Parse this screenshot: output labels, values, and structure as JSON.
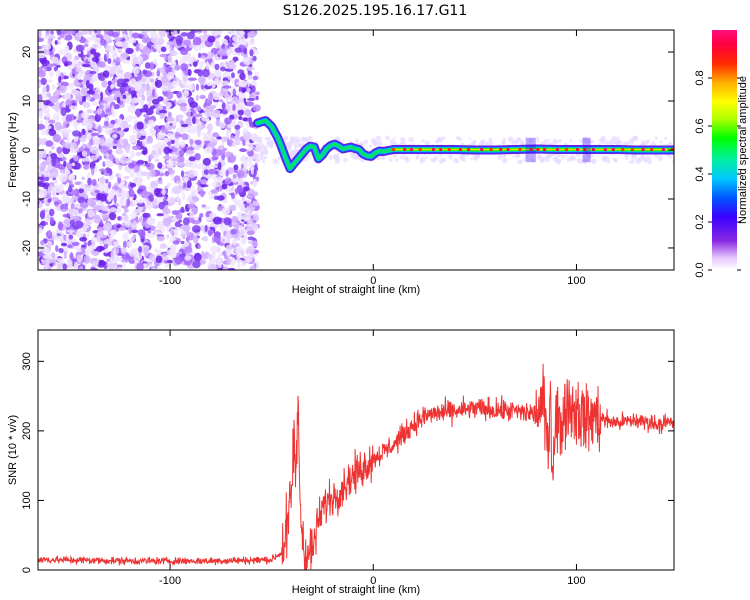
{
  "title": "S126.2025.195.16.17.G11",
  "chart_data": [
    {
      "type": "heatmap",
      "xlabel": "Height of straight line (km)",
      "ylabel": "Frequency (Hz)",
      "xlim": [
        -165,
        148
      ],
      "ylim": [
        -24.5,
        24.5
      ],
      "xticks": [
        -100,
        0,
        100
      ],
      "yticks": [
        -20,
        -10,
        0,
        10,
        20
      ],
      "colorbar": {
        "label": "Normalized spectral amplitude",
        "ticks": [
          0.0,
          0.2,
          0.4,
          0.6,
          0.8
        ],
        "range": [
          0,
          1
        ]
      },
      "noise_region_x": [
        -165,
        -60
      ],
      "ridge": {
        "x": [
          -57,
          -53,
          -50,
          -47,
          -45,
          -43,
          -41,
          -39,
          -37,
          -35,
          -33,
          -31,
          -29,
          -27,
          -25,
          -23,
          -21,
          -19,
          -17,
          -15,
          -13,
          -11,
          -9,
          -7,
          -5,
          -3,
          -1,
          1,
          3,
          5,
          10,
          20,
          30,
          40,
          50,
          60,
          70,
          80,
          90,
          100,
          110,
          120,
          130,
          140,
          148
        ],
        "y": [
          5.5,
          6.0,
          4.8,
          2.5,
          0.5,
          -1.8,
          -3.8,
          -2.8,
          -1.8,
          -0.8,
          0.2,
          0.8,
          0.6,
          -1.8,
          -1.0,
          0.2,
          0.9,
          1.2,
          0.8,
          0.2,
          0.4,
          0.6,
          0.3,
          0.1,
          -0.8,
          -1.2,
          -1.3,
          -0.6,
          -0.2,
          -0.3,
          0.1,
          0.1,
          0.1,
          0.1,
          0.0,
          0.0,
          0.1,
          0.2,
          0.1,
          0.1,
          0.1,
          0.1,
          0.0,
          0.0,
          0.0
        ]
      }
    },
    {
      "type": "line",
      "xlabel": "Height of straight line (km)",
      "ylabel": "SNR (10 * v/v)",
      "xlim": [
        -165,
        148
      ],
      "ylim": [
        0,
        345
      ],
      "xticks": [
        -100,
        0,
        100
      ],
      "yticks": [
        0,
        100,
        200,
        300
      ],
      "color": "#ee3333",
      "series": [
        {
          "x": [
            -165,
            -140,
            -120,
            -100,
            -80,
            -60,
            -50,
            -45,
            -42,
            -40,
            -39,
            -38,
            -37,
            -36,
            -35,
            -34,
            -33,
            -32,
            -30,
            -27,
            -24,
            -20,
            -16,
            -12,
            -8,
            -4,
            0,
            5,
            10,
            15,
            20,
            25,
            30,
            40,
            50,
            60,
            70,
            80,
            84,
            86,
            87,
            88,
            90,
            92,
            95,
            100,
            105,
            110,
            115,
            120,
            130,
            140,
            148
          ],
          "y": [
            15,
            14,
            13,
            13,
            13,
            14,
            15,
            25,
            60,
            120,
            200,
            110,
            260,
            90,
            60,
            30,
            25,
            22,
            28,
            70,
            95,
            105,
            115,
            130,
            140,
            150,
            160,
            170,
            180,
            195,
            210,
            220,
            225,
            228,
            232,
            230,
            228,
            224,
            240,
            160,
            280,
            140,
            230,
            200,
            240,
            230,
            215,
            220,
            215,
            212,
            215,
            210,
            212
          ]
        }
      ]
    }
  ]
}
